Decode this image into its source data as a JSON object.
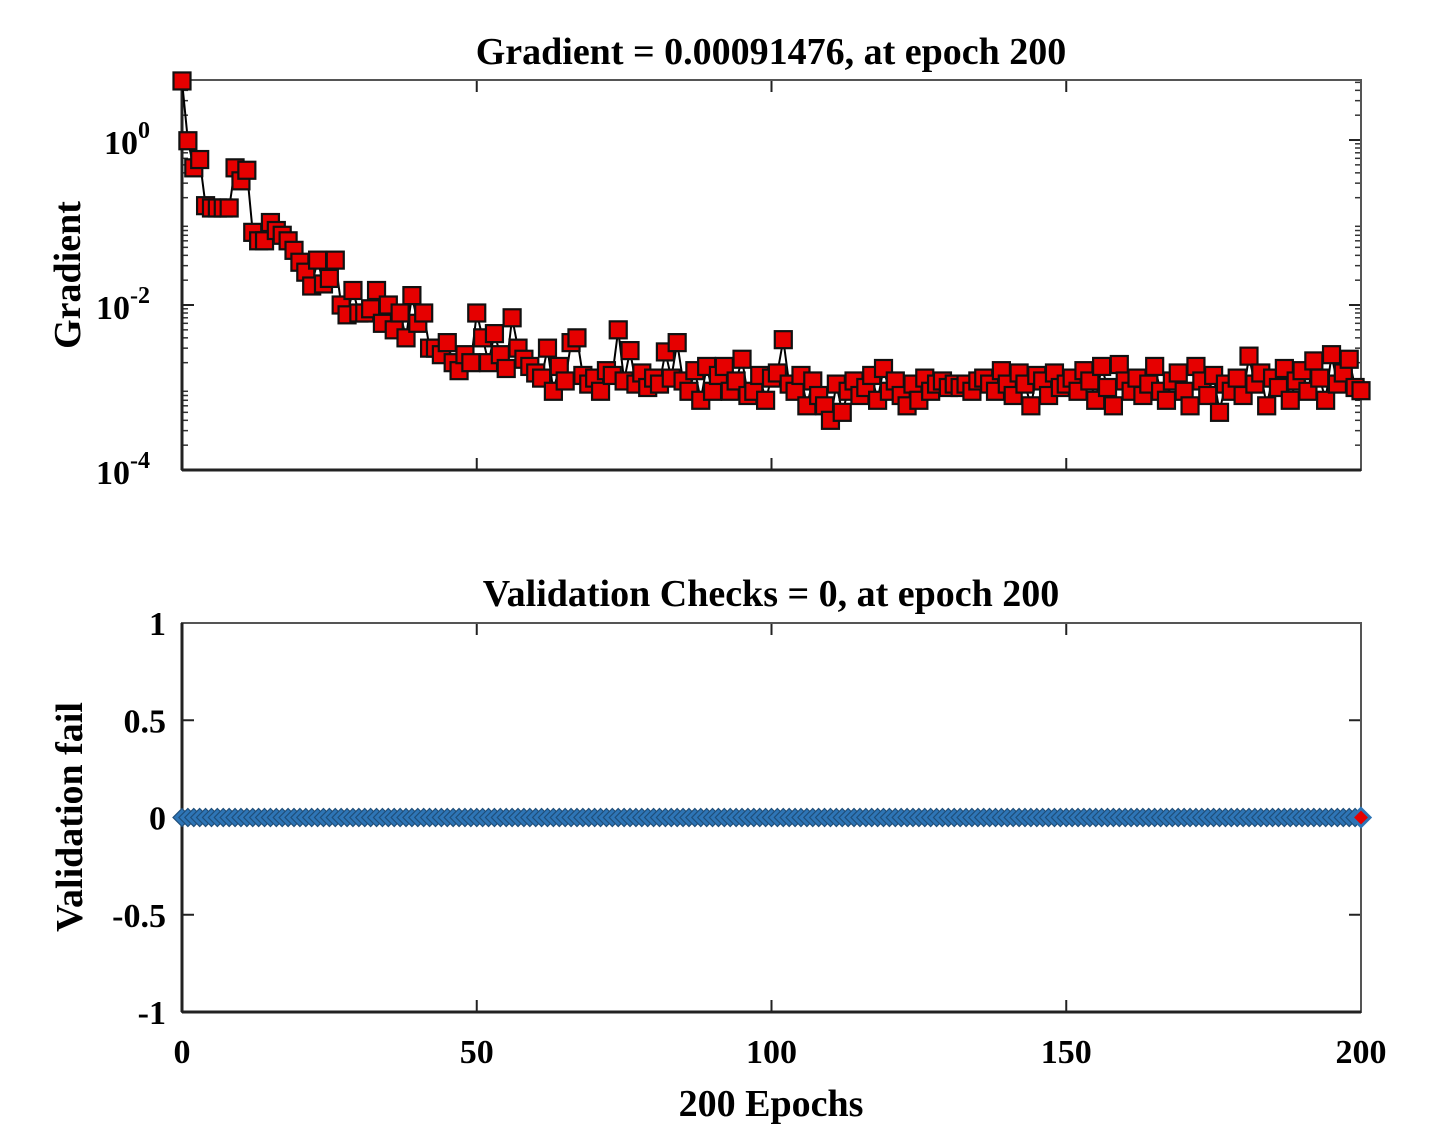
{
  "chart_data": [
    {
      "type": "line",
      "title": "Gradient = 0.00091476, at epoch 200",
      "xlabel": "",
      "ylabel": "Gradient",
      "yscale": "log",
      "xlim": [
        0,
        200
      ],
      "ylim": [
        0.0001,
        5.34
      ],
      "xticks": [
        0,
        50,
        100,
        150,
        200
      ],
      "yticks": [
        {
          "base": "10",
          "exp": "0",
          "value": 1
        },
        {
          "base": "10",
          "exp": "-2",
          "value": 0.01
        },
        {
          "base": "10",
          "exp": "-4",
          "value": 0.0001
        }
      ],
      "marker": "square",
      "marker_color": "#e60000",
      "series": [
        {
          "name": "Gradient",
          "values": [
            5.2,
            0.98,
            0.46,
            0.58,
            0.16,
            0.15,
            0.15,
            0.15,
            0.15,
            0.46,
            0.32,
            0.43,
            0.076,
            0.06,
            0.06,
            0.1,
            0.08,
            0.07,
            0.06,
            0.046,
            0.033,
            0.025,
            0.017,
            0.035,
            0.018,
            0.021,
            0.035,
            0.01,
            0.0076,
            0.015,
            0.008,
            0.008,
            0.009,
            0.015,
            0.006,
            0.01,
            0.005,
            0.008,
            0.004,
            0.013,
            0.006,
            0.008,
            0.003,
            0.003,
            0.0025,
            0.0035,
            0.002,
            0.0016,
            0.0025,
            0.002,
            0.008,
            0.004,
            0.002,
            0.0045,
            0.0025,
            0.0017,
            0.007,
            0.003,
            0.0022,
            0.0018,
            0.0015,
            0.0013,
            0.003,
            0.0009,
            0.0018,
            0.0012,
            0.0035,
            0.004,
            0.0014,
            0.0011,
            0.0013,
            0.0009,
            0.0016,
            0.0014,
            0.005,
            0.0012,
            0.0028,
            0.0011,
            0.0015,
            0.001,
            0.0013,
            0.0011,
            0.0027,
            0.0013,
            0.0035,
            0.0012,
            0.0009,
            0.0016,
            0.0007,
            0.0018,
            0.0009,
            0.0014,
            0.0018,
            0.0009,
            0.0012,
            0.0022,
            0.0008,
            0.0009,
            0.0014,
            0.0007,
            0.0013,
            0.0015,
            0.0038,
            0.0011,
            0.0009,
            0.0014,
            0.0006,
            0.0012,
            0.0008,
            0.0006,
            0.0004,
            0.0011,
            0.0005,
            0.0009,
            0.0012,
            0.0008,
            0.001,
            0.0014,
            0.0007,
            0.0017,
            0.0009,
            0.0012,
            0.0008,
            0.0006,
            0.0011,
            0.0007,
            0.0013,
            0.0009,
            0.0011,
            0.0012,
            0.001,
            0.0011,
            0.001,
            0.0011,
            0.0009,
            0.0012,
            0.0013,
            0.0011,
            0.0009,
            0.0016,
            0.0011,
            0.0008,
            0.0015,
            0.0011,
            0.0006,
            0.0014,
            0.0012,
            0.0008,
            0.0015,
            0.001,
            0.0011,
            0.0013,
            0.0009,
            0.0016,
            0.0012,
            0.0007,
            0.0018,
            0.001,
            0.0006,
            0.0019,
            0.0012,
            0.0009,
            0.0013,
            0.0008,
            0.0011,
            0.0018,
            0.0009,
            0.0007,
            0.0012,
            0.0015,
            0.0009,
            0.0006,
            0.0018,
            0.0012,
            0.0008,
            0.0014,
            0.0005,
            0.0011,
            0.0009,
            0.0013,
            0.0008,
            0.0024,
            0.0011,
            0.0015,
            0.0006,
            0.0013,
            0.001,
            0.0017,
            0.0007,
            0.0012,
            0.0016,
            0.0009,
            0.0021,
            0.0013,
            0.0007,
            0.0025,
            0.0011,
            0.0015,
            0.0022,
            0.001,
            0.00091476
          ]
        }
      ]
    },
    {
      "type": "line",
      "title": "Validation Checks = 0, at epoch 200",
      "xlabel": "200 Epochs",
      "ylabel": "Validation fail",
      "xlim": [
        0,
        200
      ],
      "ylim": [
        -1,
        1
      ],
      "xticks": [
        0,
        50,
        100,
        150,
        200
      ],
      "yticks": [
        1,
        0.5,
        0,
        -0.5,
        -1
      ],
      "ytick_labels": [
        "1",
        "0.5",
        "0",
        "-0.5",
        "-1"
      ],
      "marker": "diamond",
      "marker_color": "#2e75b6",
      "highlight_color": "#e60000",
      "series": [
        {
          "name": "Validation fail",
          "constant_value": 0,
          "epochs": 201
        }
      ]
    }
  ]
}
